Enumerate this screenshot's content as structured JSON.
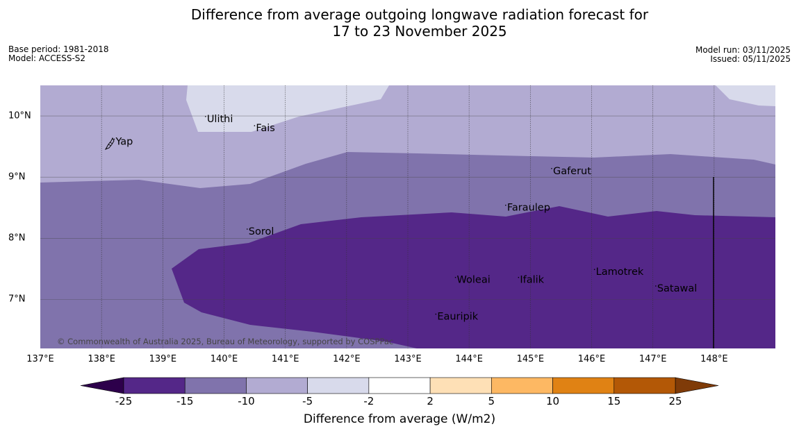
{
  "title": {
    "line1": "Difference from average outgoing longwave radiation forecast for",
    "line2": "17 to 23 November 2025"
  },
  "meta_left": {
    "base_period": "Base period: 1981-2018",
    "model": "Model: ACCESS-S2"
  },
  "meta_right": {
    "model_run": "Model run: 03/11/2025",
    "issued": "Issued: 05/11/2025"
  },
  "map": {
    "extent": {
      "lon": [
        137.0,
        149.0
      ],
      "lat": [
        6.2,
        10.5
      ]
    },
    "lon_ticks": [
      {
        "value": 137,
        "label": "137°E"
      },
      {
        "value": 138,
        "label": "138°E"
      },
      {
        "value": 139,
        "label": "139°E"
      },
      {
        "value": 140,
        "label": "140°E"
      },
      {
        "value": 141,
        "label": "141°E"
      },
      {
        "value": 142,
        "label": "142°E"
      },
      {
        "value": 143,
        "label": "143°E"
      },
      {
        "value": 144,
        "label": "144°E"
      },
      {
        "value": 145,
        "label": "145°E"
      },
      {
        "value": 146,
        "label": "146°E"
      },
      {
        "value": 147,
        "label": "147°E"
      },
      {
        "value": 148,
        "label": "148°E"
      }
    ],
    "lat_ticks": [
      {
        "value": 10,
        "label": "10°N"
      },
      {
        "value": 9,
        "label": "9°N"
      },
      {
        "value": 8,
        "label": "8°N"
      },
      {
        "value": 7,
        "label": "7°N"
      }
    ],
    "places": [
      {
        "name": "Yap",
        "lon": 138.23,
        "lat": 9.53
      },
      {
        "name": "Ulithi",
        "lon": 139.72,
        "lat": 9.9
      },
      {
        "name": "Fais",
        "lon": 140.52,
        "lat": 9.75
      },
      {
        "name": "Gaferut",
        "lon": 145.37,
        "lat": 9.05
      },
      {
        "name": "Faraulep",
        "lon": 144.62,
        "lat": 8.45
      },
      {
        "name": "Sorol",
        "lon": 140.4,
        "lat": 8.06
      },
      {
        "name": "Lamotrek",
        "lon": 146.07,
        "lat": 7.4
      },
      {
        "name": "Woleai",
        "lon": 143.8,
        "lat": 7.27
      },
      {
        "name": "Ifalik",
        "lon": 144.83,
        "lat": 7.27
      },
      {
        "name": "Satawal",
        "lon": 147.07,
        "lat": 7.13
      },
      {
        "name": "Eauripik",
        "lon": 143.48,
        "lat": 6.67
      }
    ],
    "copyright": "© Commonwealth of Australia 2025, Bureau of Meteorology, supported by COSPPac"
  },
  "colorbar": {
    "label": "Difference from average (W/m2)",
    "ticks": [
      "-25",
      "-15",
      "-10",
      "-5",
      "-2",
      "2",
      "5",
      "10",
      "15",
      "25"
    ],
    "colors": [
      "#542788",
      "#8073ac",
      "#b2abd2",
      "#d8daeb",
      "#ffffff",
      "#fee0b6",
      "#fdb863",
      "#e08214",
      "#b35806"
    ],
    "under_color": "#2d004b",
    "over_color": "#7f3b08"
  },
  "legend_colors": {
    "lt_-10": "#8073ac",
    "lt_-5": "#b2abd2",
    "lt_-15": "#542788",
    "lt_-2": "#d8daeb"
  }
}
